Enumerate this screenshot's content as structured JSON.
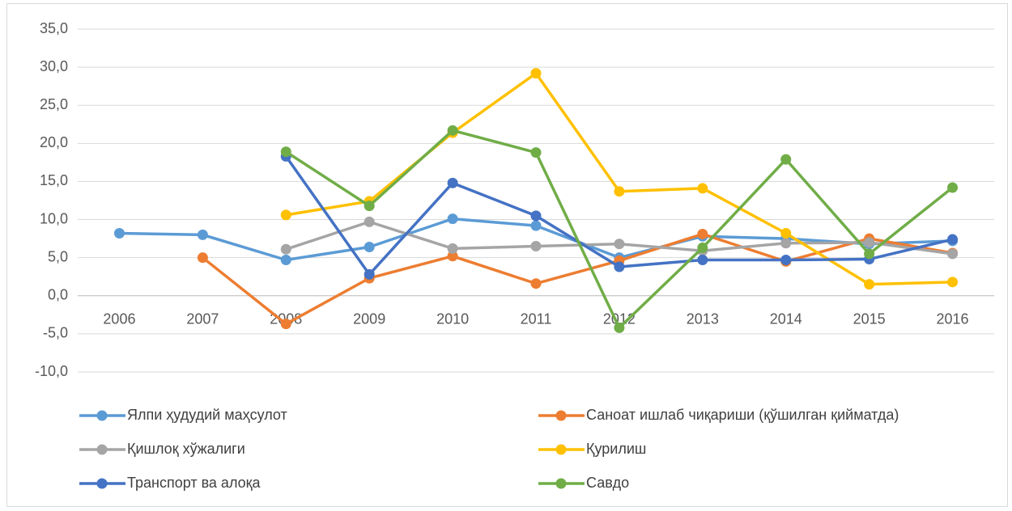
{
  "chart_data": {
    "type": "line",
    "categories": [
      "2006",
      "2007",
      "2008",
      "2009",
      "2010",
      "2011",
      "2012",
      "2013",
      "2014",
      "2015",
      "2016"
    ],
    "series": [
      {
        "name": "Ялпи ҳудудий маҳсулот",
        "color": "#5b9bd5",
        "values": [
          8.2,
          8.0,
          4.7,
          6.4,
          10.1,
          9.2,
          5.0,
          7.8,
          7.5,
          6.8,
          7.2
        ]
      },
      {
        "name": "Саноат ишлаб чиқариши (қўшилган қийматда)",
        "color": "#ed7d31",
        "values": [
          null,
          5.0,
          -3.7,
          2.3,
          5.2,
          1.6,
          4.6,
          8.1,
          4.5,
          7.5,
          5.6
        ]
      },
      {
        "name": "Қишлоқ хўжалиги",
        "color": "#a5a5a5",
        "values": [
          null,
          null,
          6.1,
          9.7,
          6.2,
          6.5,
          6.8,
          5.9,
          6.9,
          7.0,
          5.5
        ]
      },
      {
        "name": "Қурилиш",
        "color": "#ffc000",
        "values": [
          null,
          null,
          10.6,
          12.4,
          21.4,
          29.2,
          13.7,
          14.1,
          8.2,
          1.5,
          1.8
        ]
      },
      {
        "name": "Транспорт ва алоқа",
        "color": "#4472c4",
        "values": [
          null,
          null,
          18.3,
          2.8,
          14.8,
          10.5,
          3.8,
          4.7,
          4.7,
          4.8,
          7.4
        ]
      },
      {
        "name": "Савдо",
        "color": "#70ad47",
        "values": [
          null,
          null,
          18.9,
          11.8,
          21.7,
          18.8,
          -4.2,
          6.3,
          17.9,
          5.5,
          14.2
        ]
      }
    ],
    "ylim": [
      -10,
      35
    ],
    "yticks": [
      {
        "value": -10,
        "label": "-10,0"
      },
      {
        "value": -5,
        "label": "-5,0"
      },
      {
        "value": 0,
        "label": "0,0"
      },
      {
        "value": 5,
        "label": "5,0"
      },
      {
        "value": 10,
        "label": "10,0"
      },
      {
        "value": 15,
        "label": "15,0"
      },
      {
        "value": 20,
        "label": "20,0"
      },
      {
        "value": 25,
        "label": "25,0"
      },
      {
        "value": 30,
        "label": "30,0"
      },
      {
        "value": 35,
        "label": "35,0"
      }
    ],
    "grid": true,
    "legend": "bottom"
  }
}
